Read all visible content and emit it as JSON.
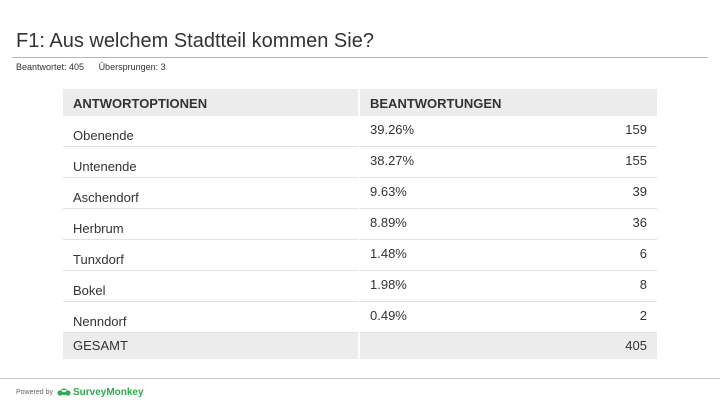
{
  "title": "F1: Aus welchem Stadtteil kommen Sie?",
  "stats": {
    "answered": "Beantwortet: 405",
    "skipped": "Übersprungen: 3"
  },
  "table": {
    "headers": {
      "options": "ANTWORTOPTIONEN",
      "responses": "BEANTWORTUNGEN"
    },
    "rows": [
      {
        "option": "Obenende",
        "percent": "39.26%",
        "count": "159"
      },
      {
        "option": "Untenende",
        "percent": "38.27%",
        "count": "155"
      },
      {
        "option": "Aschendorf",
        "percent": "9.63%",
        "count": "39"
      },
      {
        "option": "Herbrum",
        "percent": "8.89%",
        "count": "36"
      },
      {
        "option": "Tunxdorf",
        "percent": "1.48%",
        "count": "6"
      },
      {
        "option": "Bokel",
        "percent": "1.98%",
        "count": "8"
      },
      {
        "option": "Nenndorf",
        "percent": "0.49%",
        "count": "2"
      }
    ],
    "total": {
      "label": "GESAMT",
      "count": "405"
    }
  },
  "footer": {
    "powered_by": "Powered by",
    "brand": "SurveyMonkey",
    "brand_color": "#2fa84f",
    "icon": "surveymonkey-logo-icon"
  }
}
